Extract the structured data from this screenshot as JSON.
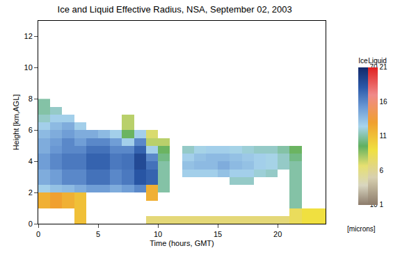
{
  "chart_data": {
    "type": "heatmap",
    "title": "Ice and Liquid Effective Radius, NSA, September 02, 2003",
    "x_label": "Time (hours, GMT)",
    "y_label": "Height [km,AGL]",
    "colorbar_label": "[microns]",
    "x": [
      0.5,
      1.5,
      2.5,
      3.5,
      4.5,
      5.5,
      6.5,
      7.5,
      8.5,
      9.5,
      10.5,
      11.5,
      12.5,
      13.5,
      14.5,
      15.5,
      16.5,
      17.5,
      18.5,
      19.5,
      20.5,
      21.5,
      22.5,
      23.5
    ],
    "y": [
      0.25,
      0.75,
      1.25,
      1.75,
      2.25,
      2.75,
      3.25,
      3.75,
      4.25,
      4.75,
      5.25,
      5.75,
      6.25,
      6.75,
      7.25,
      7.75
    ],
    "xlim": [
      0,
      24
    ],
    "xticks": [
      0,
      5,
      10,
      15,
      20
    ],
    "ylim": [
      0,
      13
    ],
    "yticks": [
      0,
      2,
      4,
      6,
      8,
      10,
      12
    ],
    "series": [
      {
        "name": "Ice",
        "colors": [
          "#8c7b6b",
          "#d9d6c0",
          "#e6e070",
          "#60b060",
          "#a8d4ec",
          "#6a98d4",
          "#2a58a8",
          "#13296a"
        ],
        "zlim": [
          10,
          70
        ],
        "zticks": [
          10,
          25,
          40,
          55,
          70
        ],
        "z": [
          [
            null,
            null,
            null,
            null,
            null,
            null,
            null,
            null,
            null,
            null,
            null,
            null,
            null,
            null,
            null,
            null,
            null,
            null,
            null,
            null,
            null,
            null,
            null,
            null
          ],
          [
            null,
            null,
            null,
            null,
            null,
            null,
            null,
            null,
            null,
            null,
            null,
            null,
            null,
            null,
            null,
            null,
            null,
            null,
            null,
            null,
            null,
            null,
            null,
            null
          ],
          [
            null,
            null,
            null,
            null,
            null,
            null,
            null,
            null,
            null,
            null,
            null,
            null,
            null,
            null,
            null,
            null,
            null,
            null,
            null,
            null,
            null,
            40,
            null,
            null
          ],
          [
            null,
            null,
            null,
            null,
            null,
            null,
            null,
            null,
            null,
            null,
            null,
            null,
            null,
            null,
            null,
            null,
            null,
            null,
            null,
            null,
            null,
            40,
            null,
            null
          ],
          [
            45,
            47,
            48,
            50,
            52,
            52,
            50,
            52,
            55,
            55,
            40,
            null,
            null,
            null,
            null,
            null,
            null,
            null,
            null,
            null,
            null,
            40,
            null,
            null
          ],
          [
            50,
            52,
            55,
            55,
            58,
            58,
            55,
            57,
            62,
            60,
            40,
            null,
            null,
            null,
            null,
            null,
            42,
            42,
            null,
            null,
            null,
            40,
            null,
            null
          ],
          [
            50,
            52,
            55,
            55,
            58,
            58,
            55,
            57,
            62,
            60,
            40,
            null,
            45,
            45,
            45,
            47,
            45,
            45,
            43,
            42,
            null,
            40,
            null,
            null
          ],
          [
            52,
            55,
            57,
            57,
            60,
            60,
            57,
            58,
            64,
            58,
            40,
            null,
            47,
            48,
            48,
            50,
            48,
            47,
            45,
            44,
            42,
            40,
            null,
            null
          ],
          [
            52,
            55,
            57,
            57,
            60,
            60,
            57,
            58,
            64,
            55,
            38,
            null,
            45,
            47,
            48,
            48,
            47,
            46,
            45,
            44,
            42,
            38,
            null,
            null
          ],
          [
            50,
            53,
            55,
            55,
            58,
            58,
            55,
            55,
            60,
            45,
            35,
            null,
            42,
            44,
            45,
            45,
            44,
            43,
            42,
            42,
            40,
            35,
            null,
            null
          ],
          [
            50,
            52,
            55,
            52,
            55,
            55,
            52,
            45,
            55,
            30,
            30,
            null,
            null,
            null,
            null,
            null,
            null,
            null,
            null,
            null,
            null,
            null,
            null,
            null
          ],
          [
            48,
            50,
            52,
            50,
            50,
            48,
            45,
            35,
            45,
            28,
            null,
            null,
            null,
            null,
            null,
            null,
            null,
            null,
            null,
            null,
            null,
            null,
            null,
            null
          ],
          [
            45,
            48,
            50,
            45,
            null,
            null,
            null,
            30,
            null,
            null,
            null,
            null,
            null,
            null,
            null,
            null,
            null,
            null,
            null,
            null,
            null,
            null,
            null,
            null
          ],
          [
            42,
            45,
            45,
            null,
            null,
            null,
            null,
            30,
            null,
            null,
            null,
            null,
            null,
            null,
            null,
            null,
            null,
            null,
            null,
            null,
            null,
            null,
            null,
            null
          ],
          [
            40,
            42,
            null,
            null,
            null,
            null,
            null,
            null,
            null,
            null,
            null,
            null,
            null,
            null,
            null,
            null,
            null,
            null,
            null,
            null,
            null,
            null,
            null,
            null
          ],
          [
            40,
            null,
            null,
            null,
            null,
            null,
            null,
            null,
            null,
            null,
            null,
            null,
            null,
            null,
            null,
            null,
            null,
            null,
            null,
            null,
            null,
            null,
            null,
            null
          ]
        ]
      },
      {
        "name": "Liquid",
        "colors": [
          "#8c7b6b",
          "#d8d0b0",
          "#f0e040",
          "#f0a030",
          "#f08a8a",
          "#e02020"
        ],
        "zlim": [
          1,
          21
        ],
        "zticks": [
          1,
          6,
          11,
          16,
          21
        ],
        "z": [
          [
            null,
            null,
            null,
            11,
            null,
            null,
            null,
            null,
            null,
            7,
            7,
            7,
            7,
            7,
            7,
            7,
            7,
            7,
            7,
            7,
            7,
            8,
            9,
            9
          ],
          [
            null,
            null,
            null,
            11,
            null,
            null,
            null,
            null,
            null,
            null,
            null,
            null,
            null,
            null,
            null,
            null,
            null,
            null,
            null,
            null,
            null,
            8,
            9,
            9
          ],
          [
            12,
            13,
            12,
            11,
            null,
            null,
            null,
            null,
            null,
            null,
            null,
            null,
            null,
            null,
            null,
            null,
            null,
            null,
            null,
            null,
            null,
            null,
            null,
            null
          ],
          [
            12,
            13,
            12,
            11,
            null,
            null,
            null,
            null,
            null,
            12,
            null,
            null,
            null,
            null,
            null,
            null,
            null,
            null,
            null,
            null,
            null,
            null,
            null,
            null
          ],
          [
            null,
            null,
            null,
            null,
            null,
            null,
            null,
            null,
            null,
            12,
            null,
            null,
            null,
            null,
            null,
            null,
            null,
            null,
            null,
            null,
            null,
            null,
            null,
            null
          ],
          [
            null,
            null,
            null,
            null,
            null,
            null,
            null,
            null,
            null,
            null,
            null,
            null,
            null,
            null,
            null,
            null,
            null,
            null,
            null,
            null,
            null,
            null,
            null,
            null
          ],
          [
            null,
            null,
            null,
            null,
            null,
            null,
            null,
            null,
            null,
            null,
            null,
            null,
            null,
            null,
            null,
            null,
            null,
            null,
            null,
            null,
            null,
            null,
            null,
            null
          ],
          [
            null,
            null,
            null,
            null,
            null,
            null,
            null,
            null,
            null,
            null,
            null,
            null,
            null,
            null,
            null,
            null,
            null,
            null,
            null,
            null,
            null,
            null,
            null,
            null
          ],
          [
            null,
            null,
            null,
            null,
            null,
            null,
            null,
            null,
            null,
            null,
            null,
            null,
            null,
            null,
            null,
            null,
            null,
            null,
            null,
            null,
            null,
            null,
            null,
            null
          ],
          [
            null,
            null,
            null,
            null,
            null,
            null,
            null,
            null,
            null,
            null,
            null,
            null,
            null,
            null,
            null,
            null,
            null,
            null,
            null,
            null,
            null,
            null,
            null,
            null
          ],
          [
            null,
            null,
            null,
            null,
            null,
            null,
            null,
            null,
            null,
            null,
            null,
            null,
            null,
            null,
            null,
            null,
            null,
            null,
            null,
            null,
            null,
            null,
            null,
            null
          ],
          [
            null,
            null,
            null,
            null,
            null,
            null,
            null,
            null,
            null,
            null,
            null,
            null,
            null,
            null,
            null,
            null,
            null,
            null,
            null,
            null,
            null,
            null,
            null,
            null
          ],
          [
            null,
            null,
            null,
            null,
            null,
            null,
            null,
            null,
            null,
            null,
            null,
            null,
            null,
            null,
            null,
            null,
            null,
            null,
            null,
            null,
            null,
            null,
            null,
            null
          ],
          [
            null,
            null,
            null,
            null,
            null,
            null,
            null,
            null,
            null,
            null,
            null,
            null,
            null,
            null,
            null,
            null,
            null,
            null,
            null,
            null,
            null,
            null,
            null,
            null
          ],
          [
            null,
            null,
            null,
            null,
            null,
            null,
            null,
            null,
            null,
            null,
            null,
            null,
            null,
            null,
            null,
            null,
            null,
            null,
            null,
            null,
            null,
            null,
            null,
            null
          ],
          [
            null,
            null,
            null,
            null,
            null,
            null,
            null,
            null,
            null,
            null,
            null,
            null,
            null,
            null,
            null,
            null,
            null,
            null,
            null,
            null,
            null,
            null,
            null,
            null
          ]
        ]
      }
    ]
  }
}
